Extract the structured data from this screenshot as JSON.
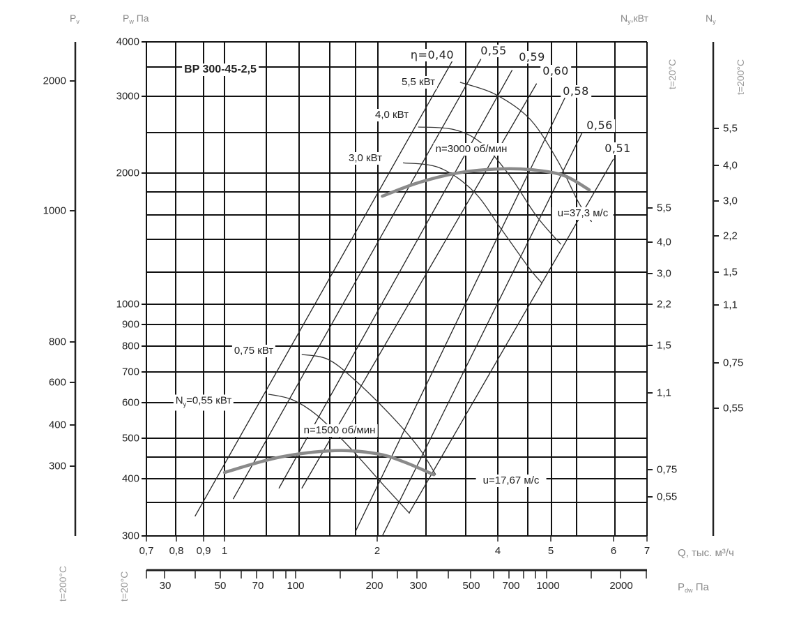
{
  "chart_data": {
    "type": "line",
    "title": "BP 300-45-2,5",
    "x_axis": {
      "label": "Q, тыс. м³/ч",
      "scale": "log",
      "range": [
        0.7,
        7
      ],
      "ticks": [
        "0,7",
        "0,8",
        "0,9",
        "1",
        "2",
        "4",
        "5",
        "6",
        "7"
      ],
      "tick_values": [
        0.7,
        0.8,
        0.9,
        1,
        2,
        4,
        5,
        6,
        7
      ]
    },
    "y_axis": {
      "label_main": "P",
      "label_sub": "v",
      "label_unit": " Па",
      "scale": "log",
      "range": [
        300,
        4000
      ],
      "ticks": [
        "4000",
        "3000",
        "2000",
        "1000",
        "900",
        "800",
        "700",
        "600",
        "500",
        "400",
        "300"
      ],
      "tick_values": [
        4000,
        3000,
        2000,
        1000,
        900,
        800,
        700,
        600,
        500,
        400,
        300
      ]
    },
    "y_axis_pv": {
      "label_main": "P",
      "label_sub": "v",
      "note": "t=200°C",
      "ticks": [
        "2000",
        "1000",
        "800",
        "600",
        "400",
        "300"
      ]
    },
    "ny_axis_20": {
      "label_main": "N",
      "label_sub": "y",
      "label_unit": ",кВт",
      "note": "t=20°C",
      "ticks": [
        "5,5",
        "4,0",
        "3,0",
        "2,2",
        "1,5",
        "1,1",
        "0,75",
        "0,55"
      ]
    },
    "ny_axis_200": {
      "label_main": "N",
      "label_sub": "y",
      "note": "t=200°C",
      "ticks": [
        "5,5",
        "4,0",
        "3,0",
        "2,2",
        "1,5",
        "1,1",
        "0,75",
        "0,55"
      ]
    },
    "pdw_axis": {
      "label_main": "P",
      "label_sub": "dw",
      "label_unit": " Па",
      "note": "t=20°C",
      "note2": "t=200°C",
      "ticks": [
        "30",
        "50",
        "70",
        "100",
        "200",
        "300",
        "500",
        "700",
        "1000",
        "2000"
      ]
    },
    "grid": true,
    "fan_curves": [
      {
        "name": "n=3000 об/мин",
        "tip_speed": "u=37,3 м/с",
        "color": "#8a8a8a",
        "points": [
          [
            2.06,
            1770
          ],
          [
            2.53,
            1900
          ],
          [
            3.22,
            2005
          ],
          [
            4.07,
            2045
          ],
          [
            4.71,
            2030
          ],
          [
            5.21,
            1970
          ],
          [
            5.59,
            1830
          ]
        ]
      },
      {
        "name": "n=1500 об/мин",
        "tip_speed": "u=17,67 м/с",
        "color": "#8a8a8a",
        "points": [
          [
            1.0,
            414
          ],
          [
            1.28,
            450
          ],
          [
            1.65,
            467
          ],
          [
            2.0,
            459
          ],
          [
            2.33,
            439
          ],
          [
            2.77,
            409
          ]
        ]
      }
    ],
    "power_curves": [
      {
        "name": "5,5 кВт",
        "points": [
          [
            3.22,
            3231
          ],
          [
            3.94,
            3033
          ],
          [
            4.58,
            2659
          ],
          [
            5.1,
            2136
          ],
          [
            5.42,
            1713
          ],
          [
            5.63,
            1546
          ]
        ]
      },
      {
        "name": "4,0 кВт",
        "points": [
          [
            2.53,
            2551
          ],
          [
            3.1,
            2518
          ],
          [
            3.63,
            2347
          ],
          [
            4.19,
            1985
          ],
          [
            4.71,
            1592
          ],
          [
            5.15,
            1372
          ]
        ]
      },
      {
        "name": "3,0 кВт",
        "points": [
          [
            2.32,
            2111
          ],
          [
            2.86,
            2057
          ],
          [
            3.49,
            1811
          ],
          [
            4.07,
            1480
          ],
          [
            4.58,
            1204
          ],
          [
            4.82,
            1118
          ]
        ]
      },
      {
        "name": "0,75 кВт",
        "points": [
          [
            1.42,
            766
          ],
          [
            1.6,
            747
          ],
          [
            1.81,
            671
          ],
          [
            2.16,
            563
          ],
          [
            2.53,
            477
          ],
          [
            2.8,
            409
          ]
        ]
      },
      {
        "name_main": "N",
        "name_sub": "y",
        "name": "=0,55 кВт",
        "points": [
          [
            1.22,
            626
          ],
          [
            1.36,
            609
          ],
          [
            1.52,
            563
          ],
          [
            1.76,
            477
          ],
          [
            2.11,
            381
          ],
          [
            2.41,
            336
          ]
        ]
      }
    ],
    "efficiency_lines": [
      {
        "name": "η=0,40",
        "points": [
          [
            3.1,
            3653
          ],
          [
            0.867,
            331
          ]
        ]
      },
      {
        "name": "0,55",
        "points": [
          [
            3.63,
            3653
          ],
          [
            1.04,
            361
          ]
        ]
      },
      {
        "name": "0,59",
        "points": [
          [
            4.25,
            3448
          ],
          [
            1.28,
            381
          ]
        ]
      },
      {
        "name": "0,60",
        "points": [
          [
            4.71,
            3209
          ],
          [
            1.42,
            381
          ]
        ]
      },
      {
        "name": "0,58",
        "points": [
          [
            5.21,
            2978
          ],
          [
            1.81,
            306
          ]
        ]
      },
      {
        "name": "0,56",
        "points": [
          [
            5.48,
            2481
          ],
          [
            2.06,
            300
          ]
        ]
      },
      {
        "name": "0,51",
        "points": [
          [
            6.0,
            2155
          ],
          [
            2.4,
            336
          ]
        ]
      }
    ]
  }
}
